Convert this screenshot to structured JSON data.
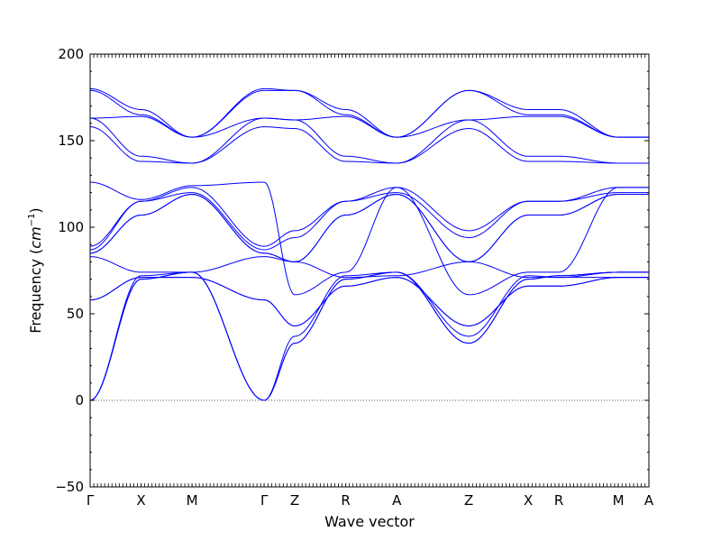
{
  "chart_data": {
    "type": "line",
    "title": "",
    "xlabel": "Wave vector",
    "ylabel_main": "Frequency (",
    "ylabel_unit": "cm",
    "ylabel_exp": "−1",
    "ylabel_close": ")",
    "ylim": [
      -50,
      200
    ],
    "yticks": [
      -50,
      0,
      50,
      100,
      150,
      200
    ],
    "ytick_labels": [
      "−50",
      "0",
      "50",
      "100",
      "150",
      "200"
    ],
    "grid": false,
    "zero_line": true,
    "line_color": "#0000ff",
    "zero_line_color": "#555555",
    "segments": [
      {
        "from": "Γ",
        "to": "X",
        "length": 0.5
      },
      {
        "from": "X",
        "to": "M",
        "length": 0.5
      },
      {
        "from": "M",
        "to": "Γ",
        "length": 0.707
      },
      {
        "from": "Γ",
        "to": "Z",
        "length": 0.3
      },
      {
        "from": "Z",
        "to": "R",
        "length": 0.5
      },
      {
        "from": "R",
        "to": "A",
        "length": 0.5
      },
      {
        "from": "A",
        "to": "Z",
        "length": 0.707
      },
      {
        "from": "Z",
        "to": "X",
        "length": 0.583
      },
      {
        "from": "X",
        "to": "R",
        "length": 0.3
      },
      {
        "from": "R",
        "to": "M",
        "length": 0.583
      },
      {
        "from": "M",
        "to": "A",
        "length": 0.3
      }
    ],
    "high_symmetry_labels": [
      "Γ",
      "X",
      "M",
      "Γ",
      "Z",
      "R",
      "A",
      "Z",
      "X",
      "R",
      "M",
      "A"
    ],
    "bands": [
      [
        0,
        70,
        74,
        0,
        33,
        70,
        74,
        33,
        70,
        72,
        74,
        74
      ],
      [
        0,
        70,
        74,
        0,
        33,
        70,
        74,
        33,
        70,
        72,
        74,
        74
      ],
      [
        0,
        72,
        74,
        0,
        37,
        72,
        74,
        37,
        72,
        71,
        74,
        74
      ],
      [
        58,
        71,
        71,
        58,
        43,
        66,
        71,
        43,
        66,
        66,
        71,
        71
      ],
      [
        58,
        71,
        71,
        58,
        43,
        66,
        71,
        43,
        66,
        66,
        71,
        71
      ],
      [
        83,
        74,
        74,
        83,
        80,
        71,
        72,
        80,
        71,
        71,
        71,
        71
      ],
      [
        85,
        107,
        119,
        85,
        80,
        107,
        119,
        80,
        107,
        107,
        119,
        119
      ],
      [
        85,
        107,
        119,
        85,
        80,
        107,
        119,
        80,
        107,
        107,
        119,
        119
      ],
      [
        87,
        115,
        120,
        87,
        94,
        115,
        120,
        94,
        115,
        115,
        120,
        120
      ],
      [
        89,
        115,
        123,
        89,
        98,
        115,
        123,
        98,
        115,
        115,
        123,
        123
      ],
      [
        126,
        116,
        124,
        126,
        61,
        74,
        123,
        61,
        74,
        74,
        123,
        123
      ],
      [
        158,
        138,
        137,
        158,
        157,
        138,
        137,
        157,
        138,
        138,
        137,
        137
      ],
      [
        163,
        141,
        137,
        163,
        162,
        141,
        137,
        162,
        141,
        141,
        137,
        137
      ],
      [
        163,
        164,
        152,
        163,
        162,
        164,
        152,
        162,
        164,
        164,
        152,
        152
      ],
      [
        179,
        165,
        152,
        179,
        179,
        165,
        152,
        179,
        165,
        165,
        152,
        152
      ],
      [
        180,
        168,
        152,
        180,
        179,
        168,
        152,
        179,
        168,
        168,
        152,
        152
      ]
    ]
  }
}
